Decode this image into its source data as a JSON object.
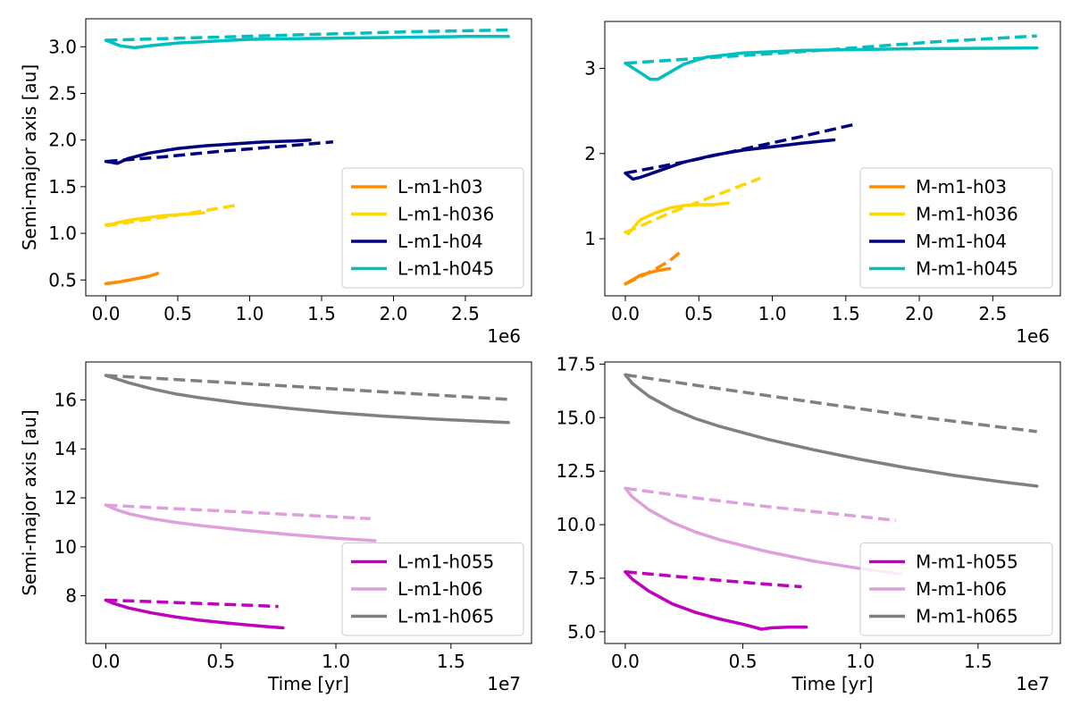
{
  "chart_data": [
    {
      "type": "line",
      "panel": "top-left",
      "title": "",
      "xlabel": "",
      "ylabel": "Semi-major axis [au]",
      "xlim": [
        -140000,
        2960000
      ],
      "ylim": [
        0.33,
        3.3
      ],
      "xticks": [
        0,
        500000,
        1000000,
        1500000,
        2000000,
        2500000
      ],
      "xtick_labels": [
        "0.0",
        "0.5",
        "1.0",
        "1.5",
        "2.0",
        "2.5"
      ],
      "yticks": [
        0.5,
        1.0,
        1.5,
        2.0,
        2.5,
        3.0
      ],
      "ytick_labels": [
        "0.5",
        "1.0",
        "1.5",
        "2.0",
        "2.5",
        "3.0"
      ],
      "offset_label": "1e6",
      "legend_position": "lower-right",
      "series": [
        {
          "name": "L-m1-h03",
          "color": "#ff8c00",
          "x": [
            0,
            100000,
            200000,
            300000,
            360000
          ],
          "values": [
            0.46,
            0.48,
            0.51,
            0.54,
            0.57
          ],
          "dash_x": [
            0,
            100000,
            200000,
            300000,
            360000
          ],
          "dash_values": [
            0.46,
            0.48,
            0.51,
            0.54,
            0.57
          ]
        },
        {
          "name": "L-m1-h036",
          "color": "#ffd700",
          "x": [
            0,
            50000,
            100000,
            200000,
            300000,
            400000,
            500000,
            600000,
            680000
          ],
          "values": [
            1.09,
            1.1,
            1.12,
            1.15,
            1.17,
            1.19,
            1.2,
            1.21,
            1.22
          ],
          "dash_x": [
            0,
            300000,
            600000,
            900000
          ],
          "dash_values": [
            1.08,
            1.15,
            1.22,
            1.3
          ]
        },
        {
          "name": "L-m1-h04",
          "color": "#000080",
          "x": [
            0,
            40000,
            80000,
            150000,
            300000,
            500000,
            700000,
            900000,
            1100000,
            1300000,
            1420000
          ],
          "values": [
            1.77,
            1.76,
            1.75,
            1.8,
            1.86,
            1.91,
            1.94,
            1.96,
            1.98,
            1.99,
            2.0
          ],
          "dash_x": [
            0,
            400000,
            800000,
            1200000,
            1580000
          ],
          "dash_values": [
            1.77,
            1.82,
            1.88,
            1.93,
            1.98
          ]
        },
        {
          "name": "L-m1-h045",
          "color": "#00bfbf",
          "x": [
            0,
            100000,
            200000,
            300000,
            500000,
            1000000,
            1500000,
            2000000,
            2500000,
            2800000
          ],
          "values": [
            3.07,
            3.01,
            2.99,
            3.01,
            3.04,
            3.08,
            3.09,
            3.1,
            3.11,
            3.11
          ],
          "dash_x": [
            0,
            700000,
            1400000,
            2100000,
            2800000
          ],
          "dash_values": [
            3.07,
            3.1,
            3.13,
            3.16,
            3.18
          ]
        }
      ]
    },
    {
      "type": "line",
      "panel": "top-right",
      "title": "",
      "xlabel": "",
      "ylabel": "",
      "xlim": [
        -140000,
        2960000
      ],
      "ylim": [
        0.33,
        3.55
      ],
      "xticks": [
        0,
        500000,
        1000000,
        1500000,
        2000000,
        2500000
      ],
      "xtick_labels": [
        "0.0",
        "0.5",
        "1.0",
        "1.5",
        "2.0",
        "2.5"
      ],
      "yticks": [
        1,
        2,
        3
      ],
      "ytick_labels": [
        "1",
        "2",
        "3"
      ],
      "offset_label": "1e6",
      "legend_position": "lower-right",
      "series": [
        {
          "name": "M-m1-h03",
          "color": "#ff8c00",
          "x": [
            0,
            50000,
            100000,
            200000,
            300000
          ],
          "values": [
            0.47,
            0.52,
            0.57,
            0.62,
            0.65
          ],
          "dash_x": [
            0,
            100000,
            200000,
            300000,
            380000
          ],
          "dash_values": [
            0.47,
            0.55,
            0.64,
            0.74,
            0.85
          ]
        },
        {
          "name": "M-m1-h036",
          "color": "#ffd700",
          "x": [
            0,
            20000,
            50000,
            100000,
            200000,
            300000,
            400000,
            500000,
            600000,
            700000
          ],
          "values": [
            1.08,
            1.06,
            1.12,
            1.22,
            1.3,
            1.36,
            1.39,
            1.4,
            1.4,
            1.42
          ],
          "dash_x": [
            0,
            300000,
            600000,
            920000
          ],
          "dash_values": [
            1.07,
            1.3,
            1.5,
            1.71
          ]
        },
        {
          "name": "M-m1-h04",
          "color": "#000080",
          "x": [
            0,
            50000,
            100000,
            200000,
            400000,
            600000,
            800000,
            1000000,
            1200000,
            1420000
          ],
          "values": [
            1.77,
            1.7,
            1.72,
            1.78,
            1.9,
            1.98,
            2.04,
            2.08,
            2.12,
            2.16
          ],
          "dash_x": [
            0,
            400000,
            800000,
            1200000,
            1580000
          ],
          "dash_values": [
            1.77,
            1.9,
            2.05,
            2.2,
            2.35
          ]
        },
        {
          "name": "M-m1-h045",
          "color": "#00bfbf",
          "x": [
            0,
            100000,
            170000,
            220000,
            300000,
            400000,
            550000,
            800000,
            1200000,
            2000000,
            2800000
          ],
          "values": [
            3.06,
            2.95,
            2.87,
            2.87,
            2.95,
            3.05,
            3.13,
            3.18,
            3.21,
            3.23,
            3.24
          ],
          "dash_x": [
            0,
            700000,
            1400000,
            2100000,
            2800000
          ],
          "dash_values": [
            3.06,
            3.14,
            3.22,
            3.31,
            3.38
          ]
        }
      ]
    },
    {
      "type": "line",
      "panel": "bottom-left",
      "title": "",
      "xlabel": "Time [yr]",
      "ylabel": "Semi-major axis [au]",
      "xlim": [
        -870000,
        18500000
      ],
      "ylim": [
        6.05,
        17.55
      ],
      "xticks": [
        0,
        5000000,
        10000000,
        15000000
      ],
      "xtick_labels": [
        "0.0",
        "0.5",
        "1.0",
        "1.5"
      ],
      "yticks": [
        8,
        10,
        12,
        14,
        16
      ],
      "ytick_labels": [
        "8",
        "10",
        "12",
        "14",
        "16"
      ],
      "offset_label": "1e7",
      "legend_position": "lower-right",
      "series": [
        {
          "name": "L-m1-h055",
          "color": "#bf00bf",
          "x": [
            0,
            300000,
            1000000,
            2000000,
            3000000,
            4000000,
            5000000,
            6000000,
            7000000,
            7700000
          ],
          "values": [
            7.82,
            7.7,
            7.5,
            7.3,
            7.14,
            7.01,
            6.91,
            6.82,
            6.74,
            6.69
          ],
          "dash_x": [
            0,
            2000000,
            4000000,
            6000000,
            7500000
          ],
          "dash_values": [
            7.82,
            7.76,
            7.69,
            7.62,
            7.56
          ]
        },
        {
          "name": "L-m1-h06",
          "color": "#dda0dd",
          "x": [
            0,
            500000,
            1000000,
            2000000,
            3000000,
            4000000,
            6000000,
            8000000,
            10000000,
            11700000
          ],
          "values": [
            11.7,
            11.5,
            11.35,
            11.15,
            11.0,
            10.88,
            10.68,
            10.5,
            10.35,
            10.25
          ],
          "dash_x": [
            0,
            3000000,
            6000000,
            9000000,
            11500000
          ],
          "dash_values": [
            11.7,
            11.56,
            11.42,
            11.27,
            11.15
          ]
        },
        {
          "name": "L-m1-h065",
          "color": "#808080",
          "x": [
            0,
            500000,
            1000000,
            2000000,
            3000000,
            4000000,
            6000000,
            8000000,
            10000000,
            12000000,
            14000000,
            16000000,
            17500000
          ],
          "values": [
            17.0,
            16.85,
            16.7,
            16.45,
            16.25,
            16.1,
            15.85,
            15.65,
            15.48,
            15.34,
            15.23,
            15.14,
            15.08
          ],
          "dash_x": [
            0,
            4000000,
            8000000,
            12000000,
            17500000
          ],
          "dash_values": [
            17.0,
            16.78,
            16.56,
            16.33,
            16.02
          ]
        }
      ]
    },
    {
      "type": "line",
      "panel": "bottom-right",
      "title": "",
      "xlabel": "Time [yr]",
      "ylabel": "",
      "xlim": [
        -870000,
        18500000
      ],
      "ylim": [
        4.45,
        17.6
      ],
      "xticks": [
        0,
        5000000,
        10000000,
        15000000
      ],
      "xtick_labels": [
        "0.0",
        "0.5",
        "1.0",
        "1.5"
      ],
      "yticks": [
        5.0,
        7.5,
        10.0,
        12.5,
        15.0,
        17.5
      ],
      "ytick_labels": [
        "5.0",
        "7.5",
        "10.0",
        "12.5",
        "15.0",
        "17.5"
      ],
      "offset_label": "1e7",
      "legend_position": "lower-right",
      "series": [
        {
          "name": "M-m1-h055",
          "color": "#bf00bf",
          "x": [
            0,
            300000,
            1000000,
            2000000,
            3000000,
            4000000,
            5000000,
            5800000,
            6200000,
            7000000,
            7700000
          ],
          "values": [
            7.8,
            7.45,
            6.9,
            6.3,
            5.9,
            5.6,
            5.35,
            5.12,
            5.18,
            5.22,
            5.22
          ],
          "dash_x": [
            0,
            2000000,
            4000000,
            6000000,
            7500000
          ],
          "dash_values": [
            7.8,
            7.6,
            7.4,
            7.22,
            7.1
          ]
        },
        {
          "name": "M-m1-h06",
          "color": "#dda0dd",
          "x": [
            0,
            300000,
            1000000,
            2000000,
            3000000,
            4000000,
            6000000,
            8000000,
            10000000,
            11700000
          ],
          "values": [
            11.7,
            11.3,
            10.7,
            10.1,
            9.65,
            9.3,
            8.75,
            8.3,
            7.95,
            7.7
          ],
          "dash_x": [
            0,
            3000000,
            6000000,
            9000000,
            11500000
          ],
          "dash_values": [
            11.7,
            11.25,
            10.85,
            10.5,
            10.2
          ]
        },
        {
          "name": "M-m1-h065",
          "color": "#808080",
          "x": [
            0,
            300000,
            1000000,
            2000000,
            3000000,
            4000000,
            6000000,
            8000000,
            10000000,
            12000000,
            14000000,
            16000000,
            17500000
          ],
          "values": [
            17.0,
            16.6,
            16.0,
            15.4,
            14.95,
            14.6,
            14.0,
            13.5,
            13.05,
            12.65,
            12.3,
            12.0,
            11.8
          ],
          "dash_x": [
            0,
            4000000,
            8000000,
            12000000,
            17500000
          ],
          "dash_values": [
            17.0,
            16.35,
            15.72,
            15.1,
            14.35
          ]
        }
      ]
    }
  ]
}
